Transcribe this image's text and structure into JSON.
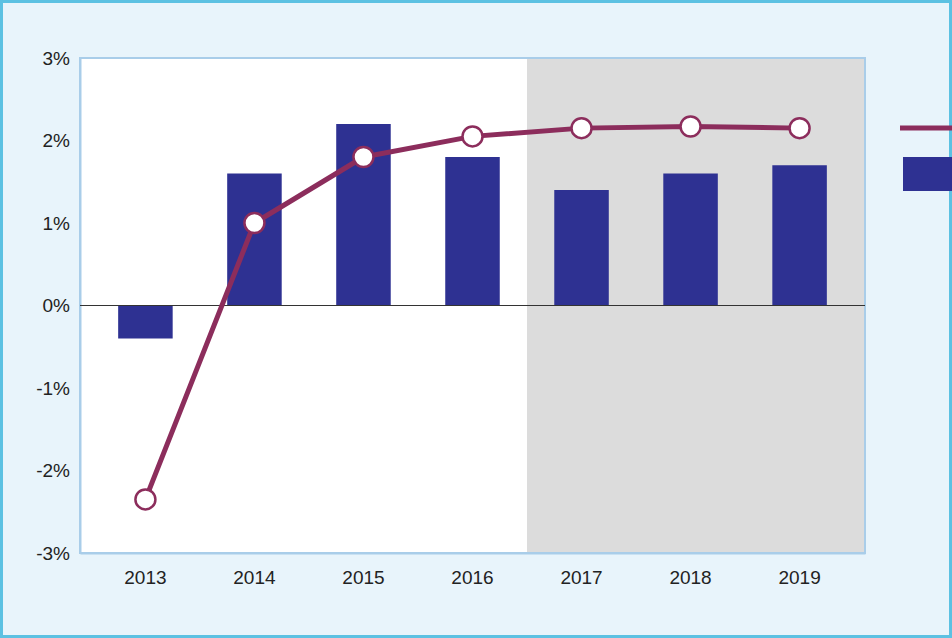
{
  "chart_data": {
    "type": "bar",
    "categories": [
      "2013",
      "2014",
      "2015",
      "2016",
      "2017",
      "2018",
      "2019"
    ],
    "series": [
      {
        "type": "line",
        "color": "#8c2d5c",
        "marker": "circle",
        "values": [
          -2.35,
          1.0,
          1.8,
          2.05,
          2.15,
          2.17,
          2.15
        ]
      },
      {
        "type": "bar",
        "color": "#2e3192",
        "values": [
          -0.4,
          1.6,
          2.2,
          1.8,
          1.4,
          1.6,
          1.7
        ]
      }
    ],
    "ylim": [
      -3,
      3
    ],
    "yticks": [
      {
        "value": -3,
        "label": "-3%"
      },
      {
        "value": -2,
        "label": "-2%"
      },
      {
        "value": -1,
        "label": "-1%"
      },
      {
        "value": 0,
        "label": "0%"
      },
      {
        "value": 1,
        "label": "1%"
      },
      {
        "value": 2,
        "label": "2%"
      },
      {
        "value": 3,
        "label": "3%"
      }
    ],
    "grid": false,
    "legend": "right"
  }
}
